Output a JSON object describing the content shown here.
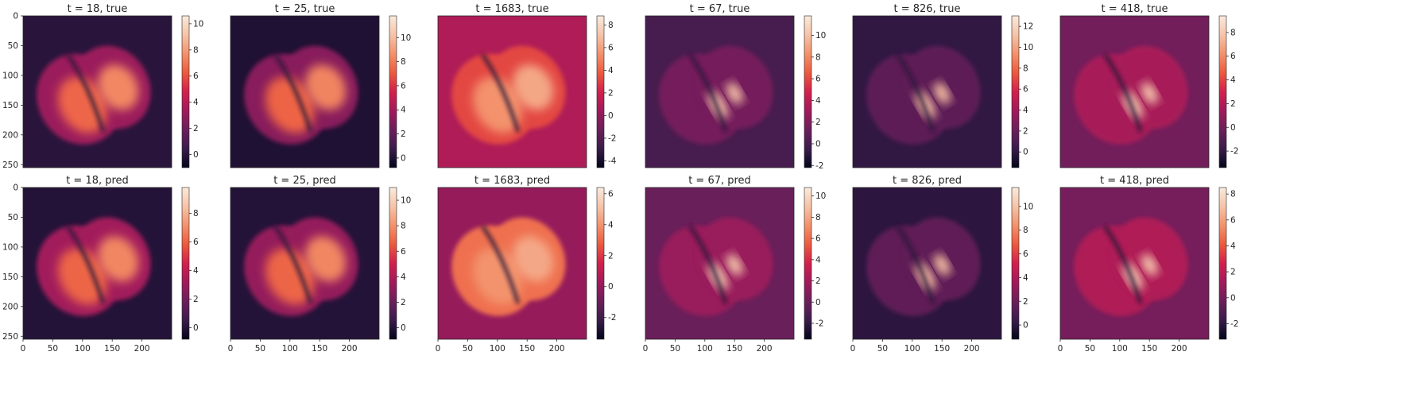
{
  "chart_data": {
    "type": "heatmap",
    "rows": [
      "true",
      "pred"
    ],
    "image_extent": {
      "x": [
        0,
        250
      ],
      "y": [
        0,
        255
      ]
    },
    "x_ticks": [
      0,
      50,
      100,
      150,
      200
    ],
    "y_ticks": [
      0,
      50,
      100,
      150,
      200,
      250
    ],
    "colormap": "rocket",
    "colormap_stops": [
      "#03051a",
      "#3a1c4b",
      "#6b1f5b",
      "#a11a5b",
      "#d2204c",
      "#ec5a3e",
      "#f3926c",
      "#f6c3a8",
      "#faebdd"
    ],
    "panels": [
      {
        "title": "t = 18, true",
        "background": 0,
        "cbar_ticks": [
          0,
          2,
          4,
          6,
          8,
          10
        ],
        "vmin": -1.0,
        "vmax": 10.6
      },
      {
        "title": "t = 25, true",
        "background": 0,
        "cbar_ticks": [
          0,
          2,
          4,
          6,
          8,
          10
        ],
        "vmin": -0.8,
        "vmax": 11.8
      },
      {
        "title": "t = 1683, true",
        "background": 0.9,
        "cbar_ticks": [
          -4,
          -2,
          0,
          2,
          4,
          6,
          8
        ],
        "vmin": -4.6,
        "vmax": 8.8
      },
      {
        "title": "t = 67, true",
        "background": 0,
        "cbar_ticks": [
          -2,
          0,
          2,
          4,
          6,
          8,
          10
        ],
        "vmin": -2.2,
        "vmax": 11.8
      },
      {
        "title": "t = 826, true",
        "background": 0,
        "cbar_ticks": [
          0,
          2,
          4,
          6,
          8,
          10,
          12
        ],
        "vmin": -1.5,
        "vmax": 13.0
      },
      {
        "title": "t = 418, true",
        "background": 0,
        "cbar_ticks": [
          -2,
          0,
          2,
          4,
          6,
          8
        ],
        "vmin": -3.4,
        "vmax": 9.4
      },
      {
        "title": "t = 18, pred",
        "background": 0,
        "cbar_ticks": [
          0,
          2,
          4,
          6,
          8
        ],
        "vmin": -0.8,
        "vmax": 9.8
      },
      {
        "title": "t = 25, pred",
        "background": 0,
        "cbar_ticks": [
          0,
          2,
          4,
          6,
          8,
          10
        ],
        "vmin": -0.9,
        "vmax": 11.0
      },
      {
        "title": "t = 1683, pred",
        "background": 0,
        "cbar_ticks": [
          -2,
          0,
          2,
          4,
          6
        ],
        "vmin": -3.4,
        "vmax": 6.4
      },
      {
        "title": "t = 67, pred",
        "background": 0,
        "cbar_ticks": [
          -2,
          0,
          2,
          4,
          6,
          8,
          10
        ],
        "vmin": -3.5,
        "vmax": 10.8
      },
      {
        "title": "t = 826, pred",
        "background": 0,
        "cbar_ticks": [
          0,
          2,
          4,
          6,
          8,
          10
        ],
        "vmin": -1.2,
        "vmax": 11.6
      },
      {
        "title": "t = 418, pred",
        "background": 0,
        "cbar_ticks": [
          -2,
          0,
          2,
          4,
          6,
          8
        ],
        "vmin": -3.2,
        "vmax": 8.5
      }
    ]
  }
}
